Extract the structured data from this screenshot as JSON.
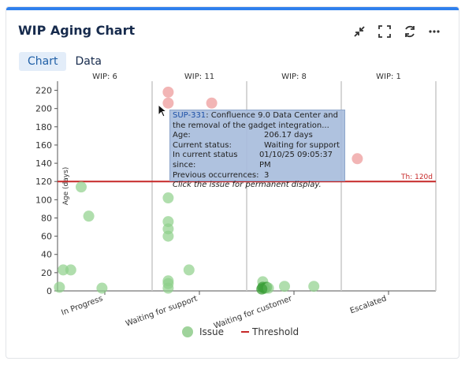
{
  "header": {
    "title": "WIP Aging Chart"
  },
  "toolbar": {
    "icons": [
      "collapse-icon",
      "fullscreen-icon",
      "refresh-icon",
      "more-icon"
    ]
  },
  "tabs": [
    {
      "label": "Chart",
      "active": true
    },
    {
      "label": "Data",
      "active": false
    }
  ],
  "colors": {
    "issue": "#8fd08a",
    "issue_dense": "#3c9f3a",
    "highlight": "#f0a8a8",
    "threshold": "#c62828",
    "accent": "#2f80ed"
  },
  "chart_data": {
    "type": "scatter",
    "ylabel": "Age (days)",
    "ylim": [
      0,
      230
    ],
    "yticks": [
      0,
      20,
      40,
      60,
      80,
      100,
      120,
      140,
      160,
      180,
      200,
      220
    ],
    "grid": false,
    "legend": "bottom",
    "categories": [
      {
        "name": "In Progress",
        "wip": "WIP: 6"
      },
      {
        "name": "Waiting for support",
        "wip": "WIP: 11"
      },
      {
        "name": "Waiting for customer",
        "wip": "WIP: 8"
      },
      {
        "name": "Escalated",
        "wip": "WIP: 1"
      }
    ],
    "threshold": {
      "value": 120,
      "label": "Th: 120d"
    },
    "series": [
      {
        "name": "Issue",
        "points": [
          {
            "category": "In Progress",
            "offset": 0.25,
            "age": 114
          },
          {
            "category": "In Progress",
            "offset": 0.33,
            "age": 82
          },
          {
            "category": "In Progress",
            "offset": 0.06,
            "age": 23
          },
          {
            "category": "In Progress",
            "offset": 0.14,
            "age": 23
          },
          {
            "category": "In Progress",
            "offset": 0.02,
            "age": 4
          },
          {
            "category": "In Progress",
            "offset": 0.47,
            "age": 3
          },
          {
            "category": "Waiting for support",
            "offset": 0.17,
            "age": 218,
            "highlight": true
          },
          {
            "category": "Waiting for support",
            "offset": 0.17,
            "age": 206,
            "highlight": true
          },
          {
            "category": "Waiting for support",
            "offset": 0.63,
            "age": 206,
            "highlight": true
          },
          {
            "category": "Waiting for support",
            "offset": 0.17,
            "age": 102
          },
          {
            "category": "Waiting for support",
            "offset": 0.17,
            "age": 76
          },
          {
            "category": "Waiting for support",
            "offset": 0.17,
            "age": 68
          },
          {
            "category": "Waiting for support",
            "offset": 0.17,
            "age": 60
          },
          {
            "category": "Waiting for support",
            "offset": 0.39,
            "age": 23
          },
          {
            "category": "Waiting for support",
            "offset": 0.17,
            "age": 11
          },
          {
            "category": "Waiting for support",
            "offset": 0.17,
            "age": 8
          },
          {
            "category": "Waiting for support",
            "offset": 0.17,
            "age": 3
          },
          {
            "category": "Waiting for customer",
            "offset": 0.17,
            "age": 10
          },
          {
            "category": "Waiting for customer",
            "offset": 0.17,
            "age": 4,
            "dense": true
          },
          {
            "category": "Waiting for customer",
            "offset": 0.19,
            "age": 3,
            "dense": true
          },
          {
            "category": "Waiting for customer",
            "offset": 0.21,
            "age": 4,
            "dense": true
          },
          {
            "category": "Waiting for customer",
            "offset": 0.23,
            "age": 3
          },
          {
            "category": "Waiting for customer",
            "offset": 0.16,
            "age": 2,
            "dense": true
          },
          {
            "category": "Waiting for customer",
            "offset": 0.4,
            "age": 5
          },
          {
            "category": "Waiting for customer",
            "offset": 0.71,
            "age": 5
          },
          {
            "category": "Escalated",
            "offset": 0.17,
            "age": 145,
            "highlight": true
          }
        ]
      }
    ],
    "legend_items": [
      {
        "name": "Issue"
      },
      {
        "name": "Threshold"
      }
    ]
  },
  "tooltip": {
    "key": "SUP-331",
    "summary": ": Confluence 9.0 Data Center and the removal of the gadget integration...",
    "rows": [
      {
        "k": "Age:",
        "v": "206.17 days"
      },
      {
        "k": "Current status:",
        "v": "Waiting for support"
      },
      {
        "k": "In current status since:",
        "v": "01/10/25 09:05:37 PM"
      },
      {
        "k": "Previous occurrences:",
        "v": "3"
      }
    ],
    "note": "Click the issue for permanent display."
  }
}
